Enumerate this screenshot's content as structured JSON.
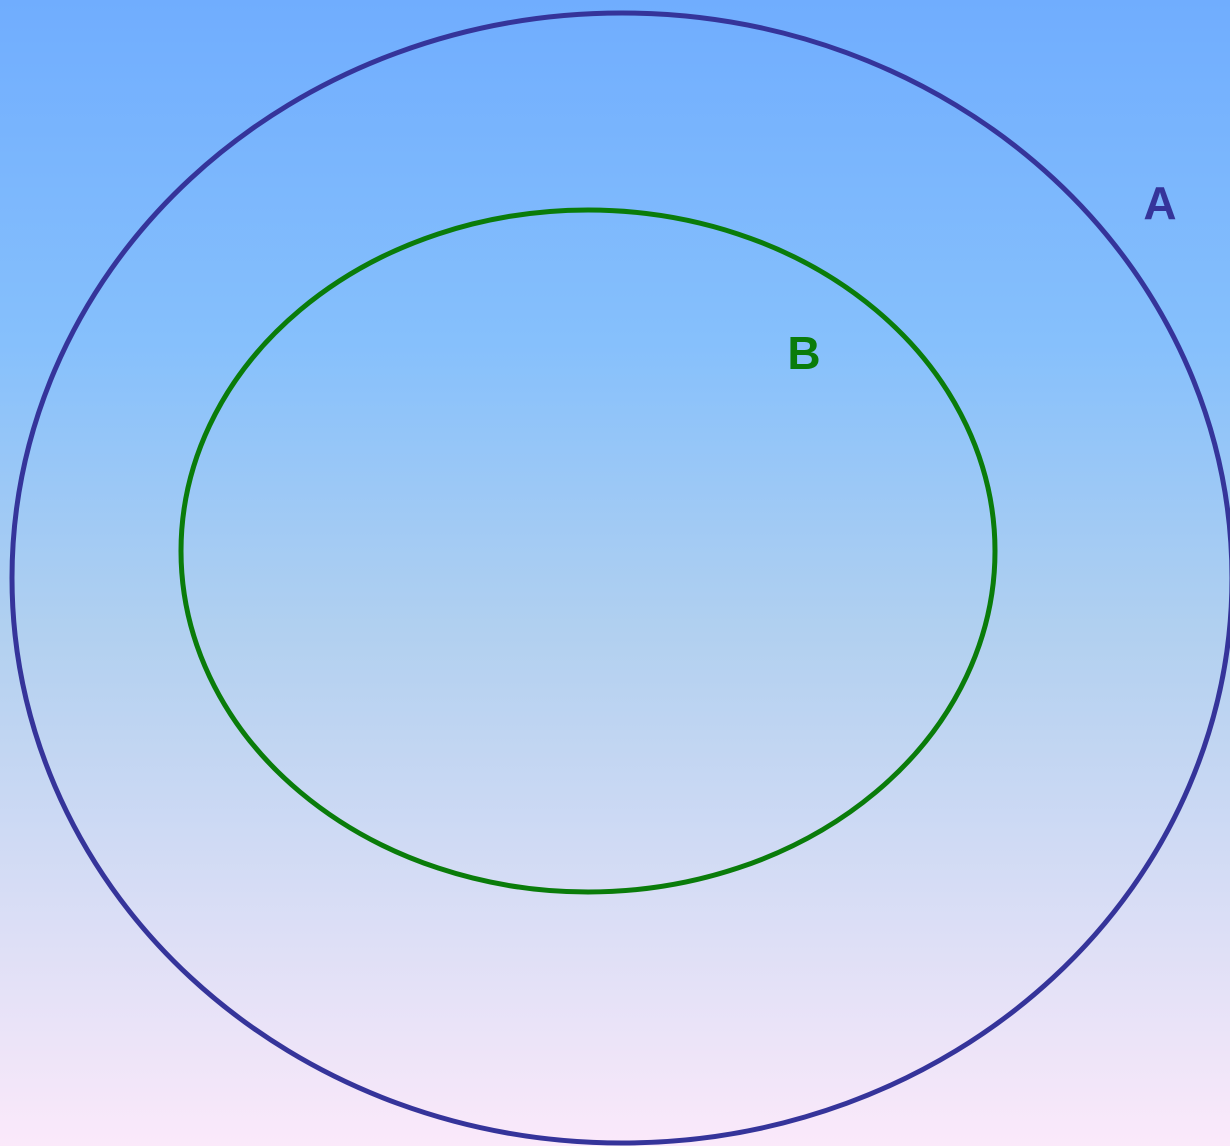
{
  "sets": [
    {
      "label": "A"
    },
    {
      "label": "B"
    }
  ]
}
